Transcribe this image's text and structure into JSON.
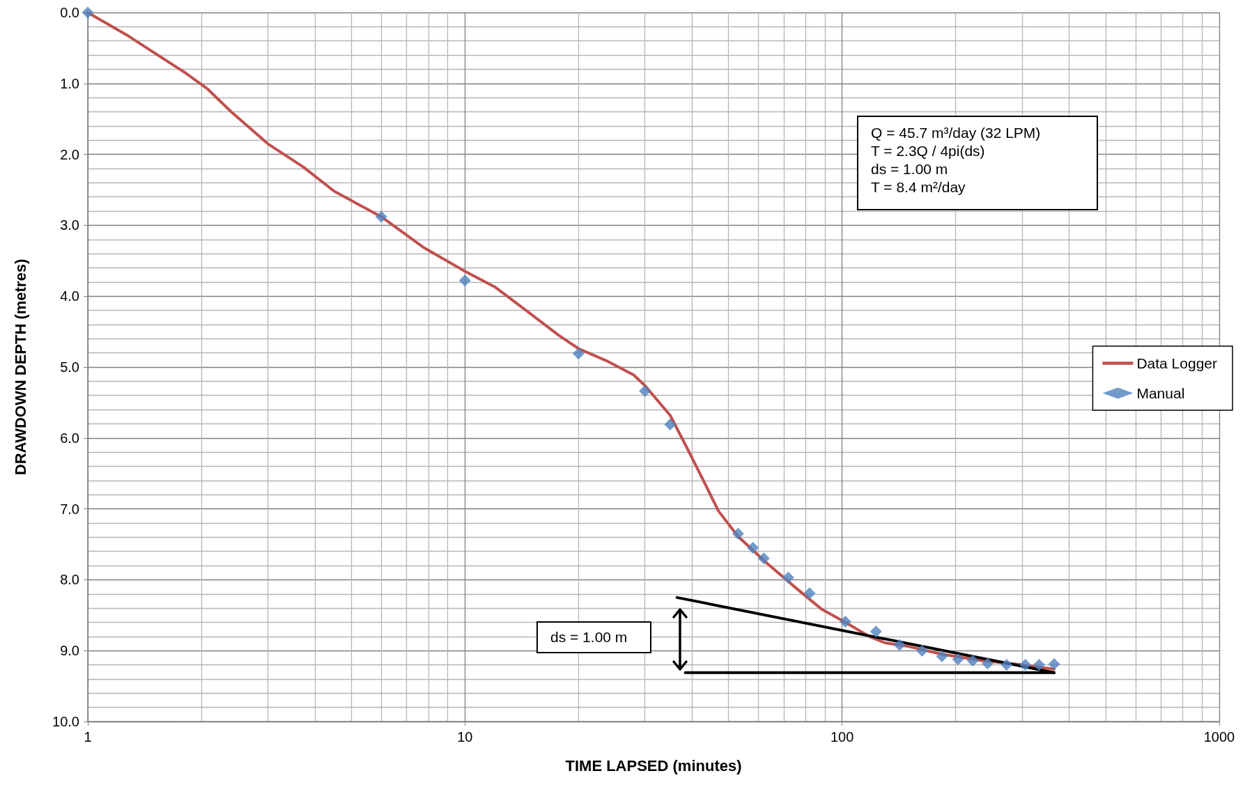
{
  "chart_data": {
    "type": "line",
    "xlabel": "TIME LAPSED (minutes)",
    "ylabel": "DRAWDOWN DEPTH (metres)",
    "log": "x",
    "xlim": [
      1,
      1000
    ],
    "xticks": [
      1,
      10,
      100,
      1000
    ],
    "ylim": [
      10,
      0
    ],
    "yticks": [
      {
        "value": 0,
        "label": "0.0"
      },
      {
        "value": 1,
        "label": "1.0"
      },
      {
        "value": 2,
        "label": "2.0"
      },
      {
        "value": 3,
        "label": "3.0"
      },
      {
        "value": 4,
        "label": "4.0"
      },
      {
        "value": 5,
        "label": "5.0"
      },
      {
        "value": 6,
        "label": "6.0"
      },
      {
        "value": 7,
        "label": "7.0"
      },
      {
        "value": 8,
        "label": "8.0"
      },
      {
        "value": 9,
        "label": "9.0"
      },
      {
        "value": 10,
        "label": "10.0"
      }
    ],
    "grid": true,
    "legend": "right",
    "series": [
      {
        "name": "Data Logger",
        "color": "#c0504d",
        "marker": "none",
        "line_style": "solid",
        "x": [
          1,
          1.28,
          1.79,
          2.08,
          2.4,
          3.0,
          3.73,
          4.5,
          6,
          7.75,
          10,
          12,
          14.6,
          17.7,
          20,
          23.7,
          28,
          30,
          35,
          38.7,
          42.7,
          47,
          53,
          63,
          76,
          88,
          102,
          118,
          130,
          150,
          184,
          235,
          300,
          365
        ],
        "values": [
          0,
          0.33,
          0.83,
          1.08,
          1.4,
          1.85,
          2.18,
          2.52,
          2.88,
          3.31,
          3.65,
          3.87,
          4.21,
          4.55,
          4.74,
          4.91,
          5.11,
          5.26,
          5.68,
          6.13,
          6.58,
          7.03,
          7.39,
          7.76,
          8.13,
          8.41,
          8.6,
          8.8,
          8.89,
          8.94,
          9.05,
          9.14,
          9.2,
          9.26
        ]
      },
      {
        "name": "Manual",
        "type": "scatter",
        "color": "#4f81bd",
        "marker": "diamond",
        "x": [
          1,
          6,
          10,
          20,
          30,
          35,
          53,
          58,
          62,
          72,
          82,
          102,
          123,
          142,
          163,
          184,
          203,
          222,
          243,
          273,
          306,
          333,
          365
        ],
        "values": [
          0,
          2.88,
          3.78,
          4.81,
          5.34,
          5.81,
          7.35,
          7.55,
          7.7,
          7.97,
          8.19,
          8.59,
          8.73,
          8.92,
          9.0,
          9.08,
          9.12,
          9.14,
          9.18,
          9.2,
          9.2,
          9.2,
          9.19
        ]
      },
      {
        "color": "#000000",
        "marker": "none",
        "line_style": "solid",
        "x": [
          36.5,
          365
        ],
        "values": [
          8.25,
          9.31
        ]
      },
      {
        "color": "#000000",
        "marker": "none",
        "line_style": "solid",
        "x": [
          38.4,
          365
        ],
        "values": [
          9.31,
          9.31
        ]
      }
    ],
    "annotations": [
      "Q = 45.7 m³/day (32 LPM)",
      "T = 2.3Q / 4pi(ds)",
      "ds = 1.00 m",
      "T = 8.4 m²/day",
      "ds = 1.00 m"
    ]
  }
}
